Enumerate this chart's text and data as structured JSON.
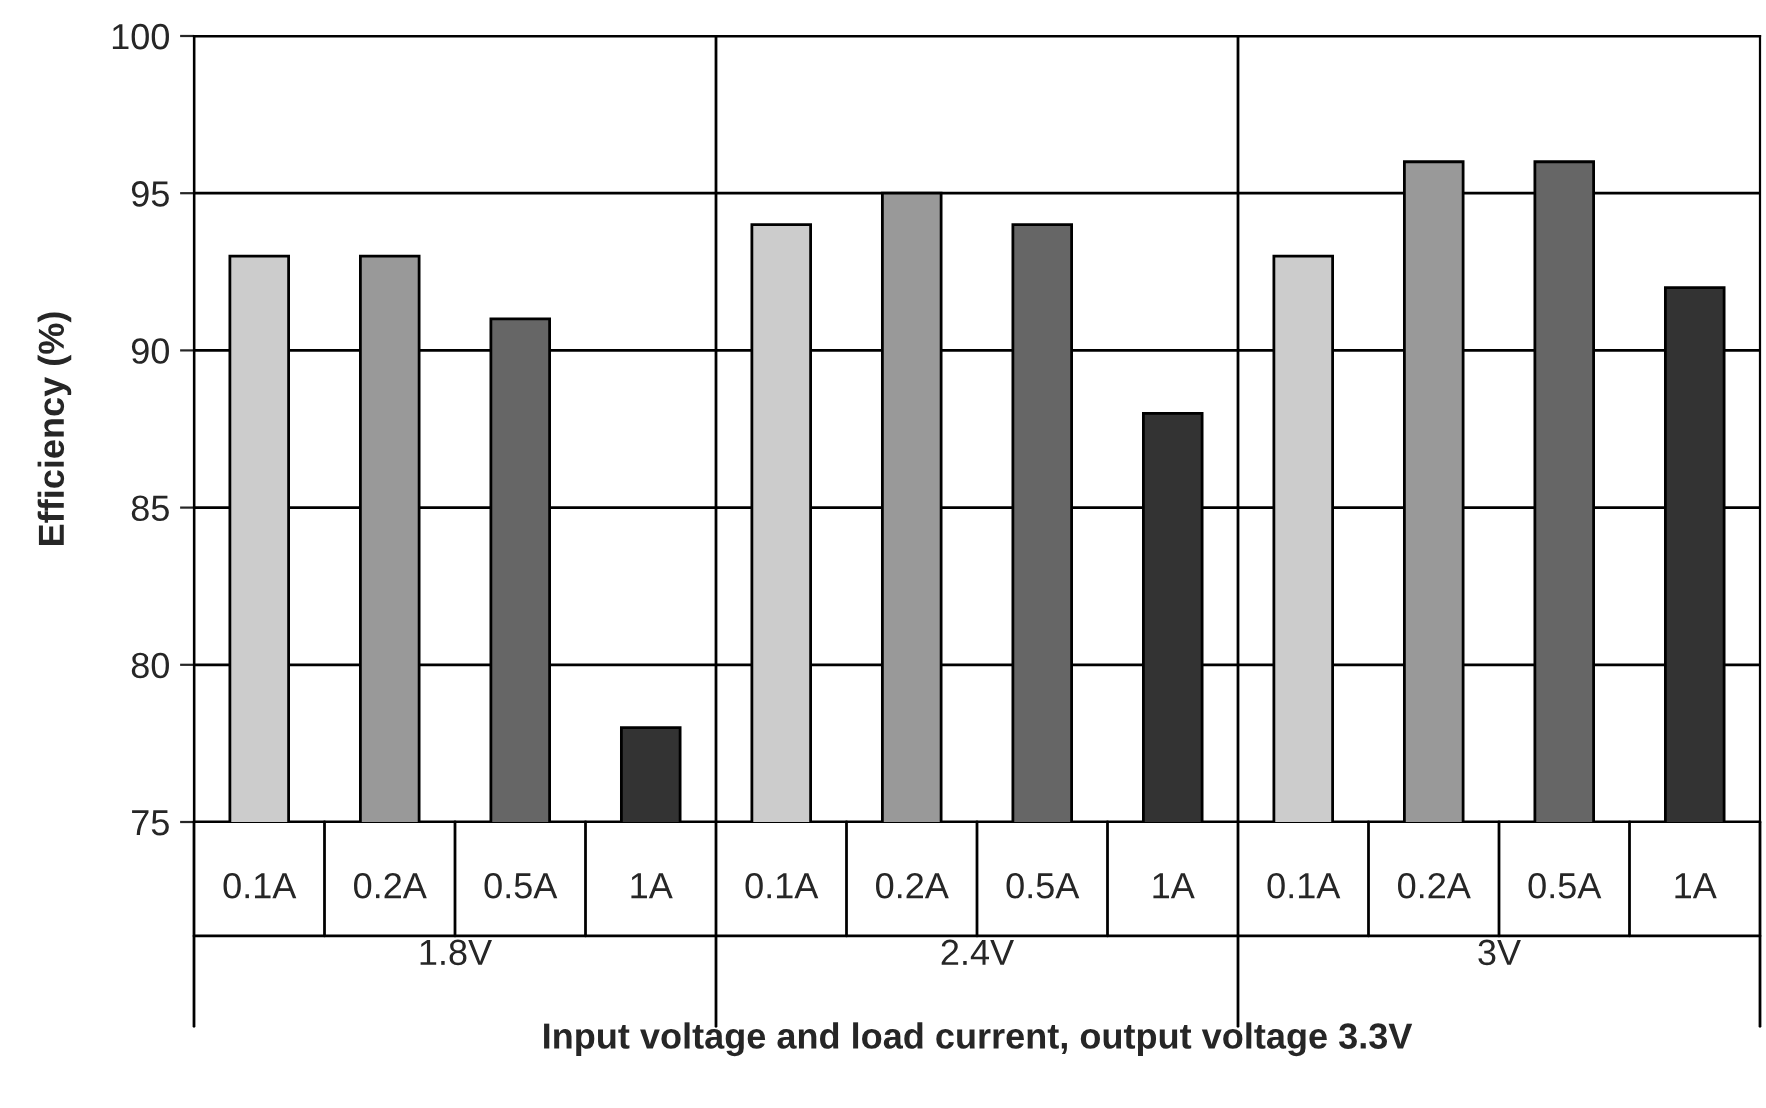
{
  "chart_data": {
    "type": "bar",
    "xlabel": "Input voltage and load current, output voltage 3.3V",
    "ylabel": "Efficiency (%)",
    "categories": [
      "1.8V",
      "2.4V",
      "3V"
    ],
    "series": [
      {
        "name": "0.1A",
        "color": "#cccccc",
        "values": [
          93,
          94,
          93
        ]
      },
      {
        "name": "0.2A",
        "color": "#999999",
        "values": [
          93,
          95,
          96
        ]
      },
      {
        "name": "0.5A",
        "color": "#666666",
        "values": [
          91,
          94,
          96
        ]
      },
      {
        "name": "1A",
        "color": "#333333",
        "values": [
          78,
          88,
          92
        ]
      }
    ],
    "ylim": [
      75,
      100
    ],
    "yticks": [
      75,
      80,
      85,
      90,
      95,
      100
    ],
    "grid": "y",
    "legend": false
  }
}
